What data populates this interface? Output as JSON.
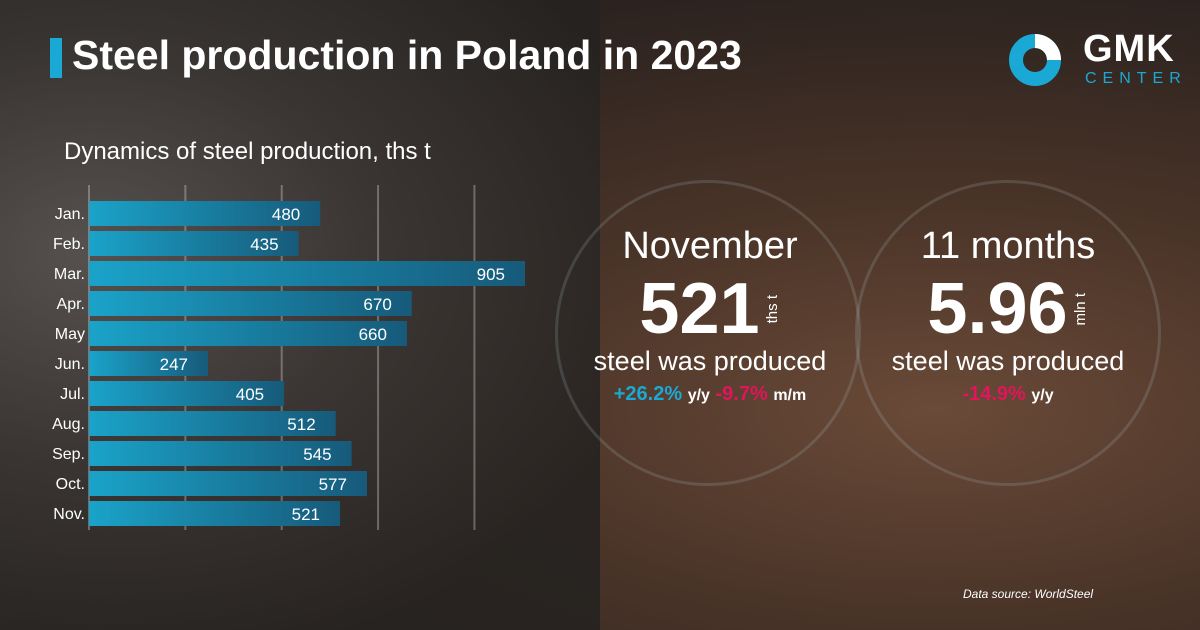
{
  "title": "Steel production in Poland in 2023",
  "logo": {
    "line1": "GMK",
    "line2": "CENTER"
  },
  "colors": {
    "accent": "#1aa9d4",
    "negative": "#e0155a",
    "bar_start": "#1aa3c9",
    "bar_end": "#175a7a"
  },
  "chart_data": {
    "type": "bar",
    "orientation": "horizontal",
    "title": "Dynamics of steel production, ths t",
    "categories": [
      "Jan.",
      "Feb.",
      "Mar.",
      "Apr.",
      "May",
      "Jun.",
      "Jul.",
      "Aug.",
      "Sep.",
      "Oct.",
      "Nov."
    ],
    "values": [
      480,
      435,
      905,
      670,
      660,
      247,
      405,
      512,
      545,
      577,
      521
    ],
    "xlim": [
      0,
      1000
    ],
    "gridlines": [
      200,
      400,
      600,
      800
    ],
    "grid": true
  },
  "november": {
    "period": "November",
    "value": "521",
    "unit": "ths t",
    "label": "steel was produced",
    "yy": "+26.2%",
    "yy_label": "y/y",
    "mm": "-9.7%",
    "mm_label": "m/m"
  },
  "months11": {
    "period": "11 months",
    "value": "5.96",
    "unit": "mln t",
    "label": "steel was produced",
    "yy": "-14.9%",
    "yy_label": "y/y"
  },
  "source": "Data source: WorldSteel"
}
